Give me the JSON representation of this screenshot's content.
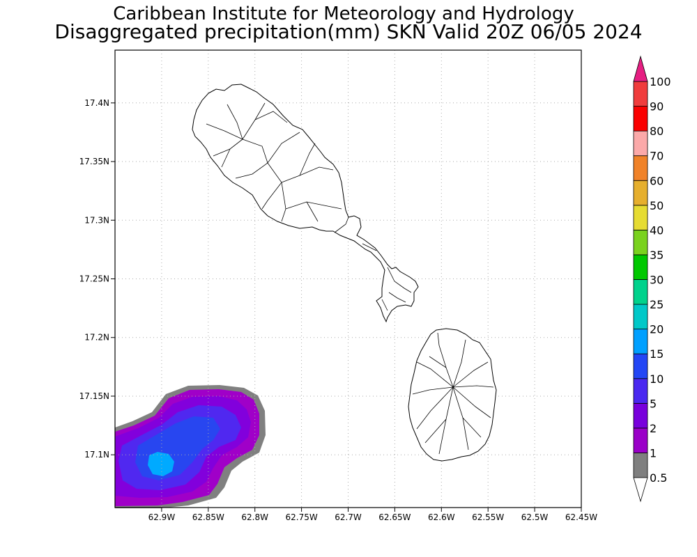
{
  "header": {
    "title": "Caribbean Institute for Meteorology and Hydrology",
    "subtitle": "Disaggregated precipitation(mm) SKN Valid 20Z 06/05 2024"
  },
  "map": {
    "lon_range": [
      -62.95,
      -62.45
    ],
    "lat_range": [
      17.055,
      17.445
    ],
    "y_ticks": [
      {
        "value": 17.4,
        "label": "17.4N"
      },
      {
        "value": 17.35,
        "label": "17.35N"
      },
      {
        "value": 17.3,
        "label": "17.3N"
      },
      {
        "value": 17.25,
        "label": "17.25N"
      },
      {
        "value": 17.2,
        "label": "17.2N"
      },
      {
        "value": 17.15,
        "label": "17.15N"
      },
      {
        "value": 17.1,
        "label": "17.1N"
      }
    ],
    "x_ticks": [
      {
        "value": -62.9,
        "label": "62.9W"
      },
      {
        "value": -62.85,
        "label": "62.85W"
      },
      {
        "value": -62.8,
        "label": "62.8W"
      },
      {
        "value": -62.75,
        "label": "62.75W"
      },
      {
        "value": -62.7,
        "label": "62.7W"
      },
      {
        "value": -62.65,
        "label": "62.65W"
      },
      {
        "value": -62.6,
        "label": "62.6W"
      },
      {
        "value": -62.55,
        "label": "62.55W"
      },
      {
        "value": -62.5,
        "label": "62.5W"
      },
      {
        "value": -62.45,
        "label": "62.45W"
      }
    ],
    "grid": "dotted"
  },
  "legend": {
    "bins": [
      {
        "label": "0.5",
        "color": "#7f7f7f"
      },
      {
        "label": "1",
        "color": "#9a00c8"
      },
      {
        "label": "2",
        "color": "#7800dc"
      },
      {
        "label": "5",
        "color": "#4a28f0"
      },
      {
        "label": "10",
        "color": "#2346f5"
      },
      {
        "label": "15",
        "color": "#00a0ff"
      },
      {
        "label": "20",
        "color": "#00c8c8"
      },
      {
        "label": "25",
        "color": "#00d28c"
      },
      {
        "label": "30",
        "color": "#00c800"
      },
      {
        "label": "35",
        "color": "#7ad21e"
      },
      {
        "label": "40",
        "color": "#e6dc32"
      },
      {
        "label": "50",
        "color": "#e6af2d"
      },
      {
        "label": "60",
        "color": "#f08228"
      },
      {
        "label": "70",
        "color": "#fba9a9"
      },
      {
        "label": "80",
        "color": "#fa0000"
      },
      {
        "label": "90",
        "color": "#f03c3c"
      },
      {
        "label": "100",
        "color": "#e61e82"
      }
    ],
    "above_color": "#e61e82",
    "below_color": "#ffffff"
  },
  "precip_colors": {
    "c05": "#808080",
    "c1": "#a000c8",
    "c2": "#8200dc",
    "c5": "#5028f0",
    "c10": "#2846f0",
    "c15": "#00aaff"
  }
}
